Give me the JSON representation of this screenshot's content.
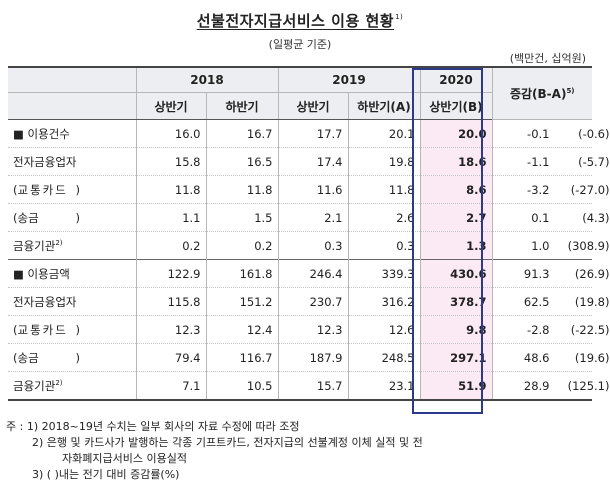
{
  "title": "선불전자지급서비스 이용 현황",
  "title_note": "1)",
  "subtitle": "(일평균 기준)",
  "unit": "(백만건, 십억원)",
  "header": {
    "years": [
      "2018",
      "2019",
      "2020"
    ],
    "halves": [
      "상반기",
      "하반기",
      "상반기",
      "하반기(A)",
      "상반기(B)"
    ],
    "change": "증감(B-A)",
    "change_note": "5)"
  },
  "rows": [
    {
      "marker": "■",
      "label": "이용건수",
      "note": "",
      "v": [
        "16.0",
        "16.7",
        "17.7",
        "20.1",
        "20.0"
      ],
      "chg": "-0.1",
      "pct": "(-0.6)"
    },
    {
      "marker": "",
      "label": "전자금융업자",
      "note": "",
      "v": [
        "15.8",
        "16.5",
        "17.4",
        "19.8",
        "18.6"
      ],
      "chg": "-1.1",
      "pct": "(-5.7)"
    },
    {
      "marker": "",
      "label": "교통카드",
      "note": "",
      "v": [
        "11.8",
        "11.8",
        "11.6",
        "11.8",
        "8.6"
      ],
      "chg": "-3.2",
      "pct": "(-27.0)"
    },
    {
      "marker": "",
      "label": "송금",
      "note": "",
      "v": [
        "1.1",
        "1.5",
        "2.1",
        "2.6",
        "2.7"
      ],
      "chg": "0.1",
      "pct": "(4.3)"
    },
    {
      "marker": "",
      "label": "금융기관",
      "note": "2)",
      "v": [
        "0.2",
        "0.2",
        "0.3",
        "0.3",
        "1.3"
      ],
      "chg": "1.0",
      "pct": "(308.9)"
    },
    {
      "marker": "■",
      "label": "이용금액",
      "note": "",
      "v": [
        "122.9",
        "161.8",
        "246.4",
        "339.3",
        "430.6"
      ],
      "chg": "91.3",
      "pct": "(26.9)"
    },
    {
      "marker": "",
      "label": "전자금융업자",
      "note": "",
      "v": [
        "115.8",
        "151.2",
        "230.7",
        "316.2",
        "378.7"
      ],
      "chg": "62.5",
      "pct": "(19.8)"
    },
    {
      "marker": "",
      "label": "교통카드",
      "note": "",
      "v": [
        "12.3",
        "12.4",
        "12.3",
        "12.6",
        "9.8"
      ],
      "chg": "-2.8",
      "pct": "(-22.5)"
    },
    {
      "marker": "",
      "label": "송금",
      "note": "",
      "v": [
        "79.4",
        "116.7",
        "187.9",
        "248.5",
        "297.1"
      ],
      "chg": "48.6",
      "pct": "(19.6)"
    },
    {
      "marker": "",
      "label": "금융기관",
      "note": "2)",
      "v": [
        "7.1",
        "10.5",
        "15.7",
        "23.1",
        "51.9"
      ],
      "chg": "28.9",
      "pct": "(125.1)"
    }
  ],
  "notes": {
    "prefix": "주 :",
    "n1": "1) 2018~19년 수치는 일부 회사의 자료 수정에 따라 조정",
    "n2a": "2) 은행 및 카드사가 발행하는 각종 기프트카드, 전자지급의 선불계정 이체 실적 및 전",
    "n2b": "자화폐지급서비스 이용실적",
    "n3": "3) (  )내는 전기 대비 증감률(%)"
  }
}
